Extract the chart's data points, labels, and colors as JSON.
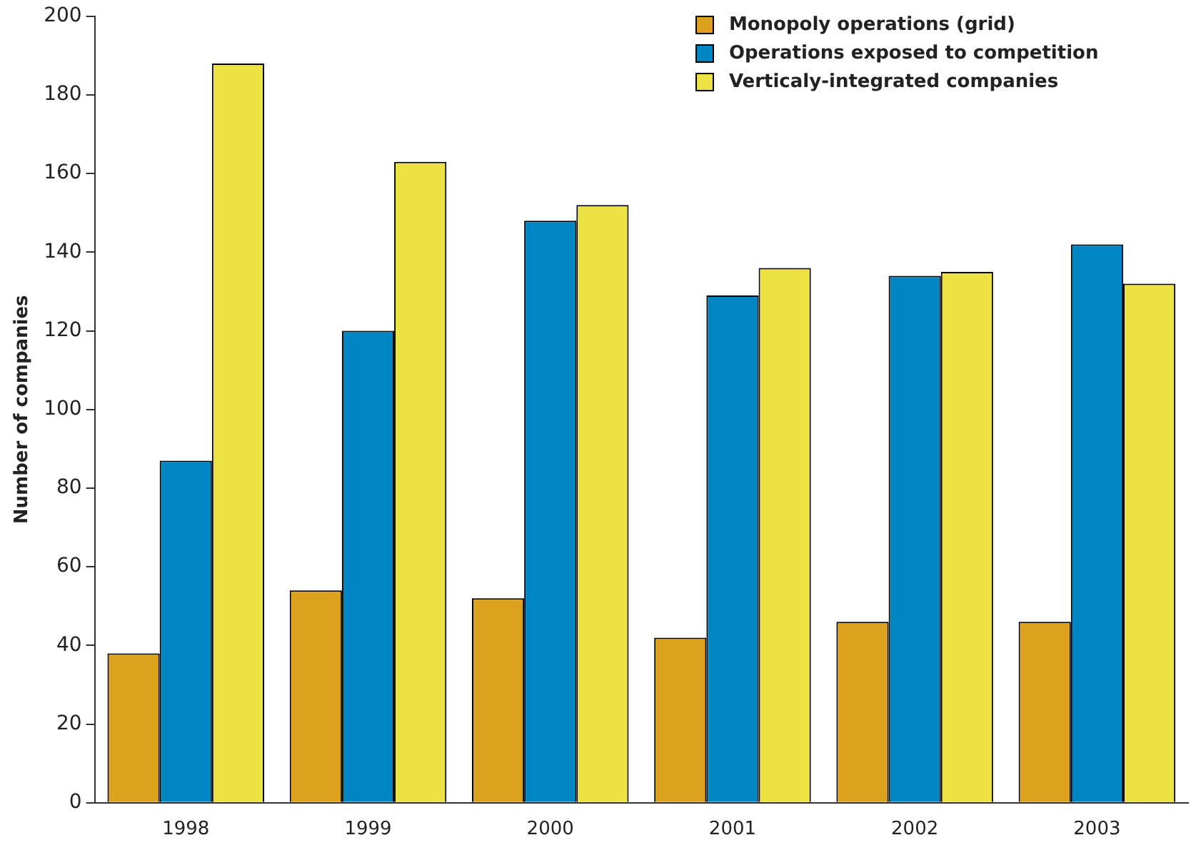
{
  "chart_data": {
    "type": "bar",
    "ylabel": "Number of companies",
    "categories": [
      "1998",
      "1999",
      "2000",
      "2001",
      "2002",
      "2003"
    ],
    "series": [
      {
        "name": "Monopoly operations (grid)",
        "color": "#dca11d",
        "values": [
          38,
          54,
          52,
          42,
          46,
          46
        ]
      },
      {
        "name": "Operations exposed to competition",
        "color": "#0086c3",
        "values": [
          87,
          120,
          148,
          129,
          134,
          142
        ]
      },
      {
        "name": "Verticaly-integrated companies",
        "color": "#ece243",
        "values": [
          188,
          163,
          152,
          136,
          135,
          132
        ]
      }
    ],
    "ylim": [
      0,
      200
    ],
    "yticks": [
      0,
      20,
      40,
      60,
      80,
      100,
      120,
      140,
      160,
      180,
      200
    ],
    "grid": false,
    "legend": "top right"
  }
}
